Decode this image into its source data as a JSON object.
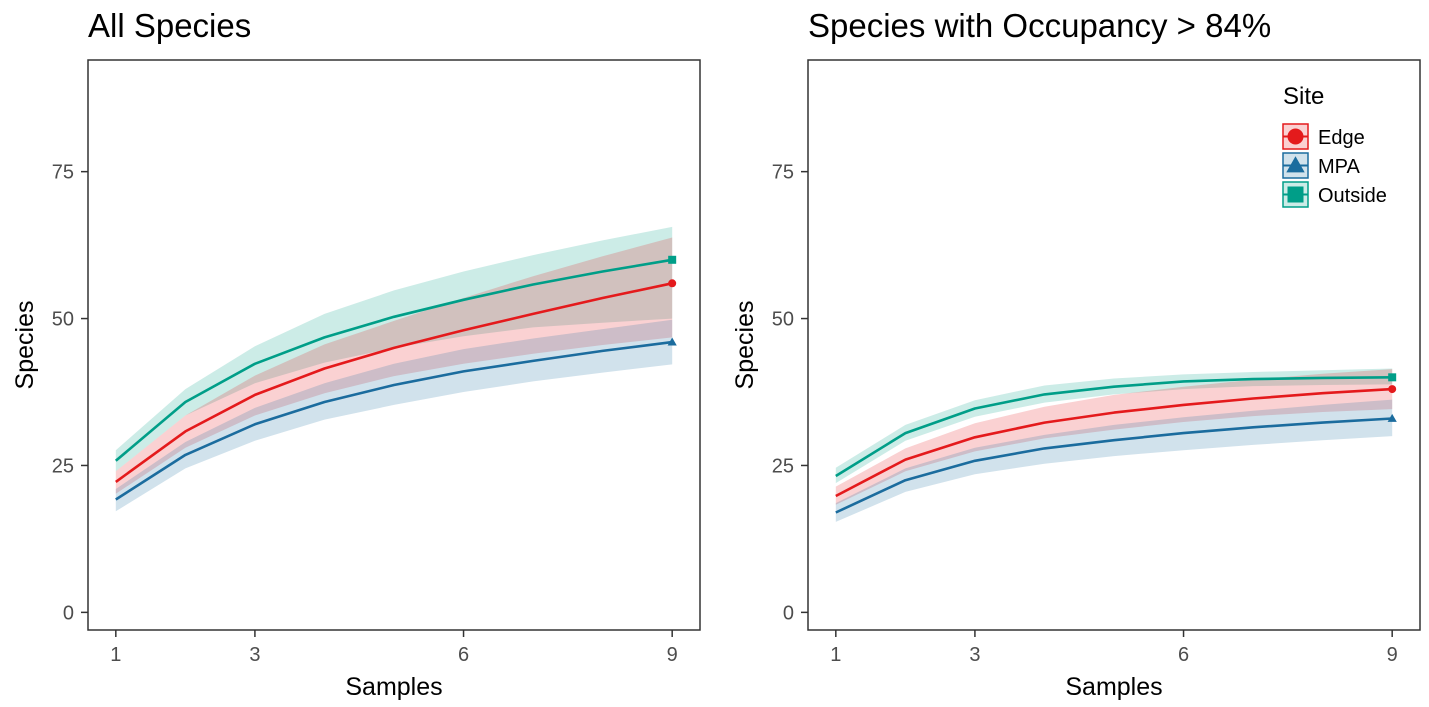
{
  "chart_data": [
    {
      "type": "line",
      "title": "All Species",
      "xlabel": "Samples",
      "ylabel": "Species",
      "xlim": [
        0.6,
        9.4
      ],
      "ylim": [
        -3,
        94
      ],
      "xticks": [
        1,
        3,
        6,
        9
      ],
      "yticks": [
        0,
        25,
        50,
        75
      ],
      "grid": false,
      "legend": null,
      "x": [
        1,
        2,
        3,
        4,
        5,
        6,
        7,
        8,
        9
      ],
      "series": [
        {
          "name": "Outside",
          "color": "#009E88",
          "marker": "square",
          "values": [
            25.8,
            35.8,
            42.3,
            46.8,
            50.3,
            53.2,
            55.8,
            58.0,
            60.0
          ],
          "lower": [
            24.0,
            33.5,
            39.0,
            42.5,
            45.0,
            47.0,
            48.5,
            49.3,
            50.0
          ],
          "upper": [
            27.6,
            38.0,
            45.3,
            50.8,
            54.8,
            58.0,
            60.8,
            63.3,
            65.6
          ]
        },
        {
          "name": "Edge",
          "color": "#E41A1C",
          "marker": "circle",
          "values": [
            22.2,
            30.8,
            37.0,
            41.5,
            45.0,
            48.0,
            50.8,
            53.5,
            56.0
          ],
          "lower": [
            20.2,
            28.0,
            33.5,
            37.3,
            40.2,
            42.3,
            44.0,
            45.5,
            46.8
          ],
          "upper": [
            24.0,
            33.5,
            40.3,
            45.6,
            49.6,
            53.5,
            57.2,
            60.6,
            63.8
          ]
        },
        {
          "name": "MPA",
          "color": "#1B6C9E",
          "marker": "triangle",
          "values": [
            19.2,
            26.8,
            32.0,
            35.8,
            38.7,
            41.0,
            42.8,
            44.5,
            46.0
          ],
          "lower": [
            17.2,
            24.5,
            29.2,
            32.8,
            35.3,
            37.5,
            39.3,
            40.8,
            42.2
          ],
          "upper": [
            21.0,
            29.0,
            34.8,
            39.0,
            42.3,
            44.8,
            46.6,
            48.2,
            49.8
          ]
        }
      ]
    },
    {
      "type": "line",
      "title": "Species with Occupancy > 84%",
      "xlabel": "Samples",
      "ylabel": "Species",
      "xlim": [
        0.6,
        9.4
      ],
      "ylim": [
        -3,
        94
      ],
      "xticks": [
        1,
        3,
        6,
        9
      ],
      "yticks": [
        0,
        25,
        50,
        75
      ],
      "grid": false,
      "legend": "top-right",
      "x": [
        1,
        2,
        3,
        4,
        5,
        6,
        7,
        8,
        9
      ],
      "series": [
        {
          "name": "Outside",
          "color": "#009E88",
          "marker": "square",
          "values": [
            23.2,
            30.5,
            34.7,
            37.1,
            38.4,
            39.3,
            39.7,
            39.9,
            40.0
          ],
          "lower": [
            22.0,
            29.2,
            33.3,
            35.7,
            37.1,
            38.0,
            38.5,
            38.7,
            38.8
          ],
          "upper": [
            24.6,
            31.9,
            36.1,
            38.6,
            39.8,
            40.5,
            40.9,
            41.2,
            41.5
          ]
        },
        {
          "name": "Edge",
          "color": "#E41A1C",
          "marker": "circle",
          "values": [
            19.8,
            26.0,
            29.8,
            32.3,
            34.0,
            35.3,
            36.4,
            37.3,
            38.0
          ],
          "lower": [
            18.3,
            24.0,
            27.4,
            29.6,
            31.1,
            32.4,
            33.4,
            34.1,
            34.6
          ],
          "upper": [
            21.4,
            27.9,
            32.2,
            35.0,
            37.0,
            38.4,
            39.6,
            40.6,
            41.4
          ]
        },
        {
          "name": "MPA",
          "color": "#1B6C9E",
          "marker": "triangle",
          "values": [
            17.0,
            22.5,
            25.8,
            27.9,
            29.3,
            30.5,
            31.5,
            32.3,
            33.0
          ],
          "lower": [
            15.4,
            20.5,
            23.5,
            25.3,
            26.6,
            27.6,
            28.5,
            29.3,
            30.0
          ],
          "upper": [
            18.6,
            24.5,
            28.0,
            30.2,
            31.9,
            33.2,
            34.3,
            35.3,
            36.2
          ]
        }
      ]
    }
  ],
  "legend": {
    "title": "Site",
    "entries": [
      {
        "label": "Edge",
        "color": "#E41A1C",
        "marker": "circle"
      },
      {
        "label": "MPA",
        "color": "#1B6C9E",
        "marker": "triangle"
      },
      {
        "label": "Outside",
        "color": "#009E88",
        "marker": "square"
      }
    ]
  }
}
